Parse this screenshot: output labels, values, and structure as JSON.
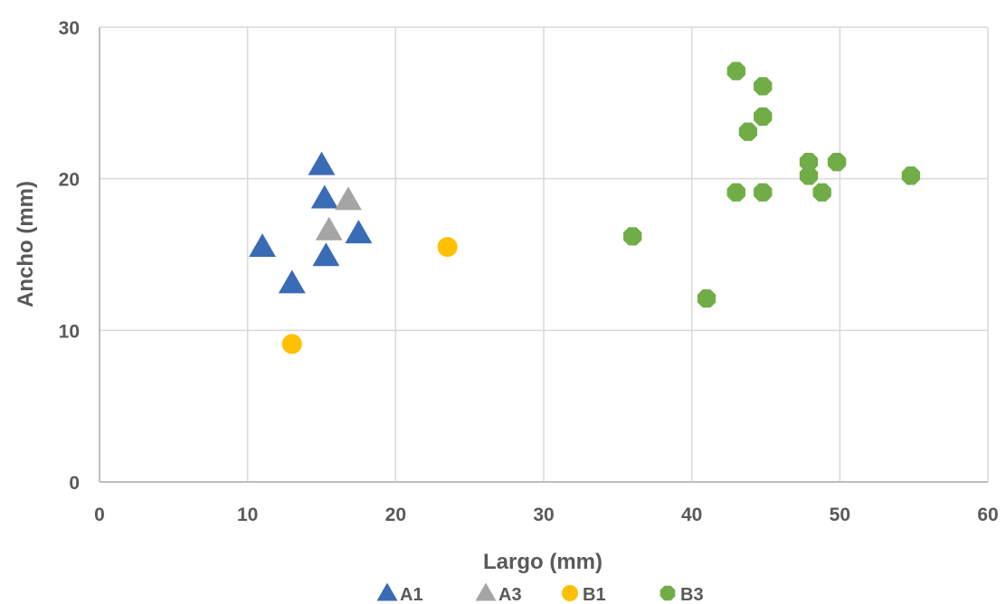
{
  "chart_data": {
    "type": "scatter",
    "title": "",
    "xlabel": "Largo (mm)",
    "ylabel": "Ancho (mm)",
    "xlim": [
      0,
      60
    ],
    "ylim": [
      0,
      30
    ],
    "x_ticks": [
      "0",
      "10",
      "20",
      "30",
      "40",
      "50",
      "60"
    ],
    "y_ticks": [
      "0",
      "10",
      "20",
      "30"
    ],
    "grid": true,
    "legend_position": "bottom",
    "series": [
      {
        "name": "A1",
        "marker": "triangle",
        "color": "#3a6bb5",
        "points": [
          [
            11,
            15.5
          ],
          [
            13,
            13.1
          ],
          [
            15,
            20.9
          ],
          [
            15.2,
            18.7
          ],
          [
            15.3,
            14.9
          ],
          [
            17.5,
            16.4
          ]
        ]
      },
      {
        "name": "A3",
        "marker": "triangle",
        "color": "#a5a5a5",
        "points": [
          [
            15.5,
            16.6
          ],
          [
            16.8,
            18.6
          ]
        ]
      },
      {
        "name": "B1",
        "marker": "circle",
        "color": "#ffc000",
        "points": [
          [
            13,
            9.1
          ],
          [
            23.5,
            15.5
          ]
        ]
      },
      {
        "name": "B3",
        "marker": "octagon",
        "color": "#70ad47",
        "points": [
          [
            36,
            16.2
          ],
          [
            41,
            12.1
          ],
          [
            43,
            27.1
          ],
          [
            43,
            19.1
          ],
          [
            43.8,
            23.1
          ],
          [
            44.8,
            26.1
          ],
          [
            44.8,
            24.1
          ],
          [
            44.8,
            19.1
          ],
          [
            47.9,
            21.1
          ],
          [
            47.9,
            20.2
          ],
          [
            48.8,
            19.1
          ],
          [
            49.8,
            21.1
          ],
          [
            54.8,
            20.2
          ]
        ]
      }
    ]
  }
}
